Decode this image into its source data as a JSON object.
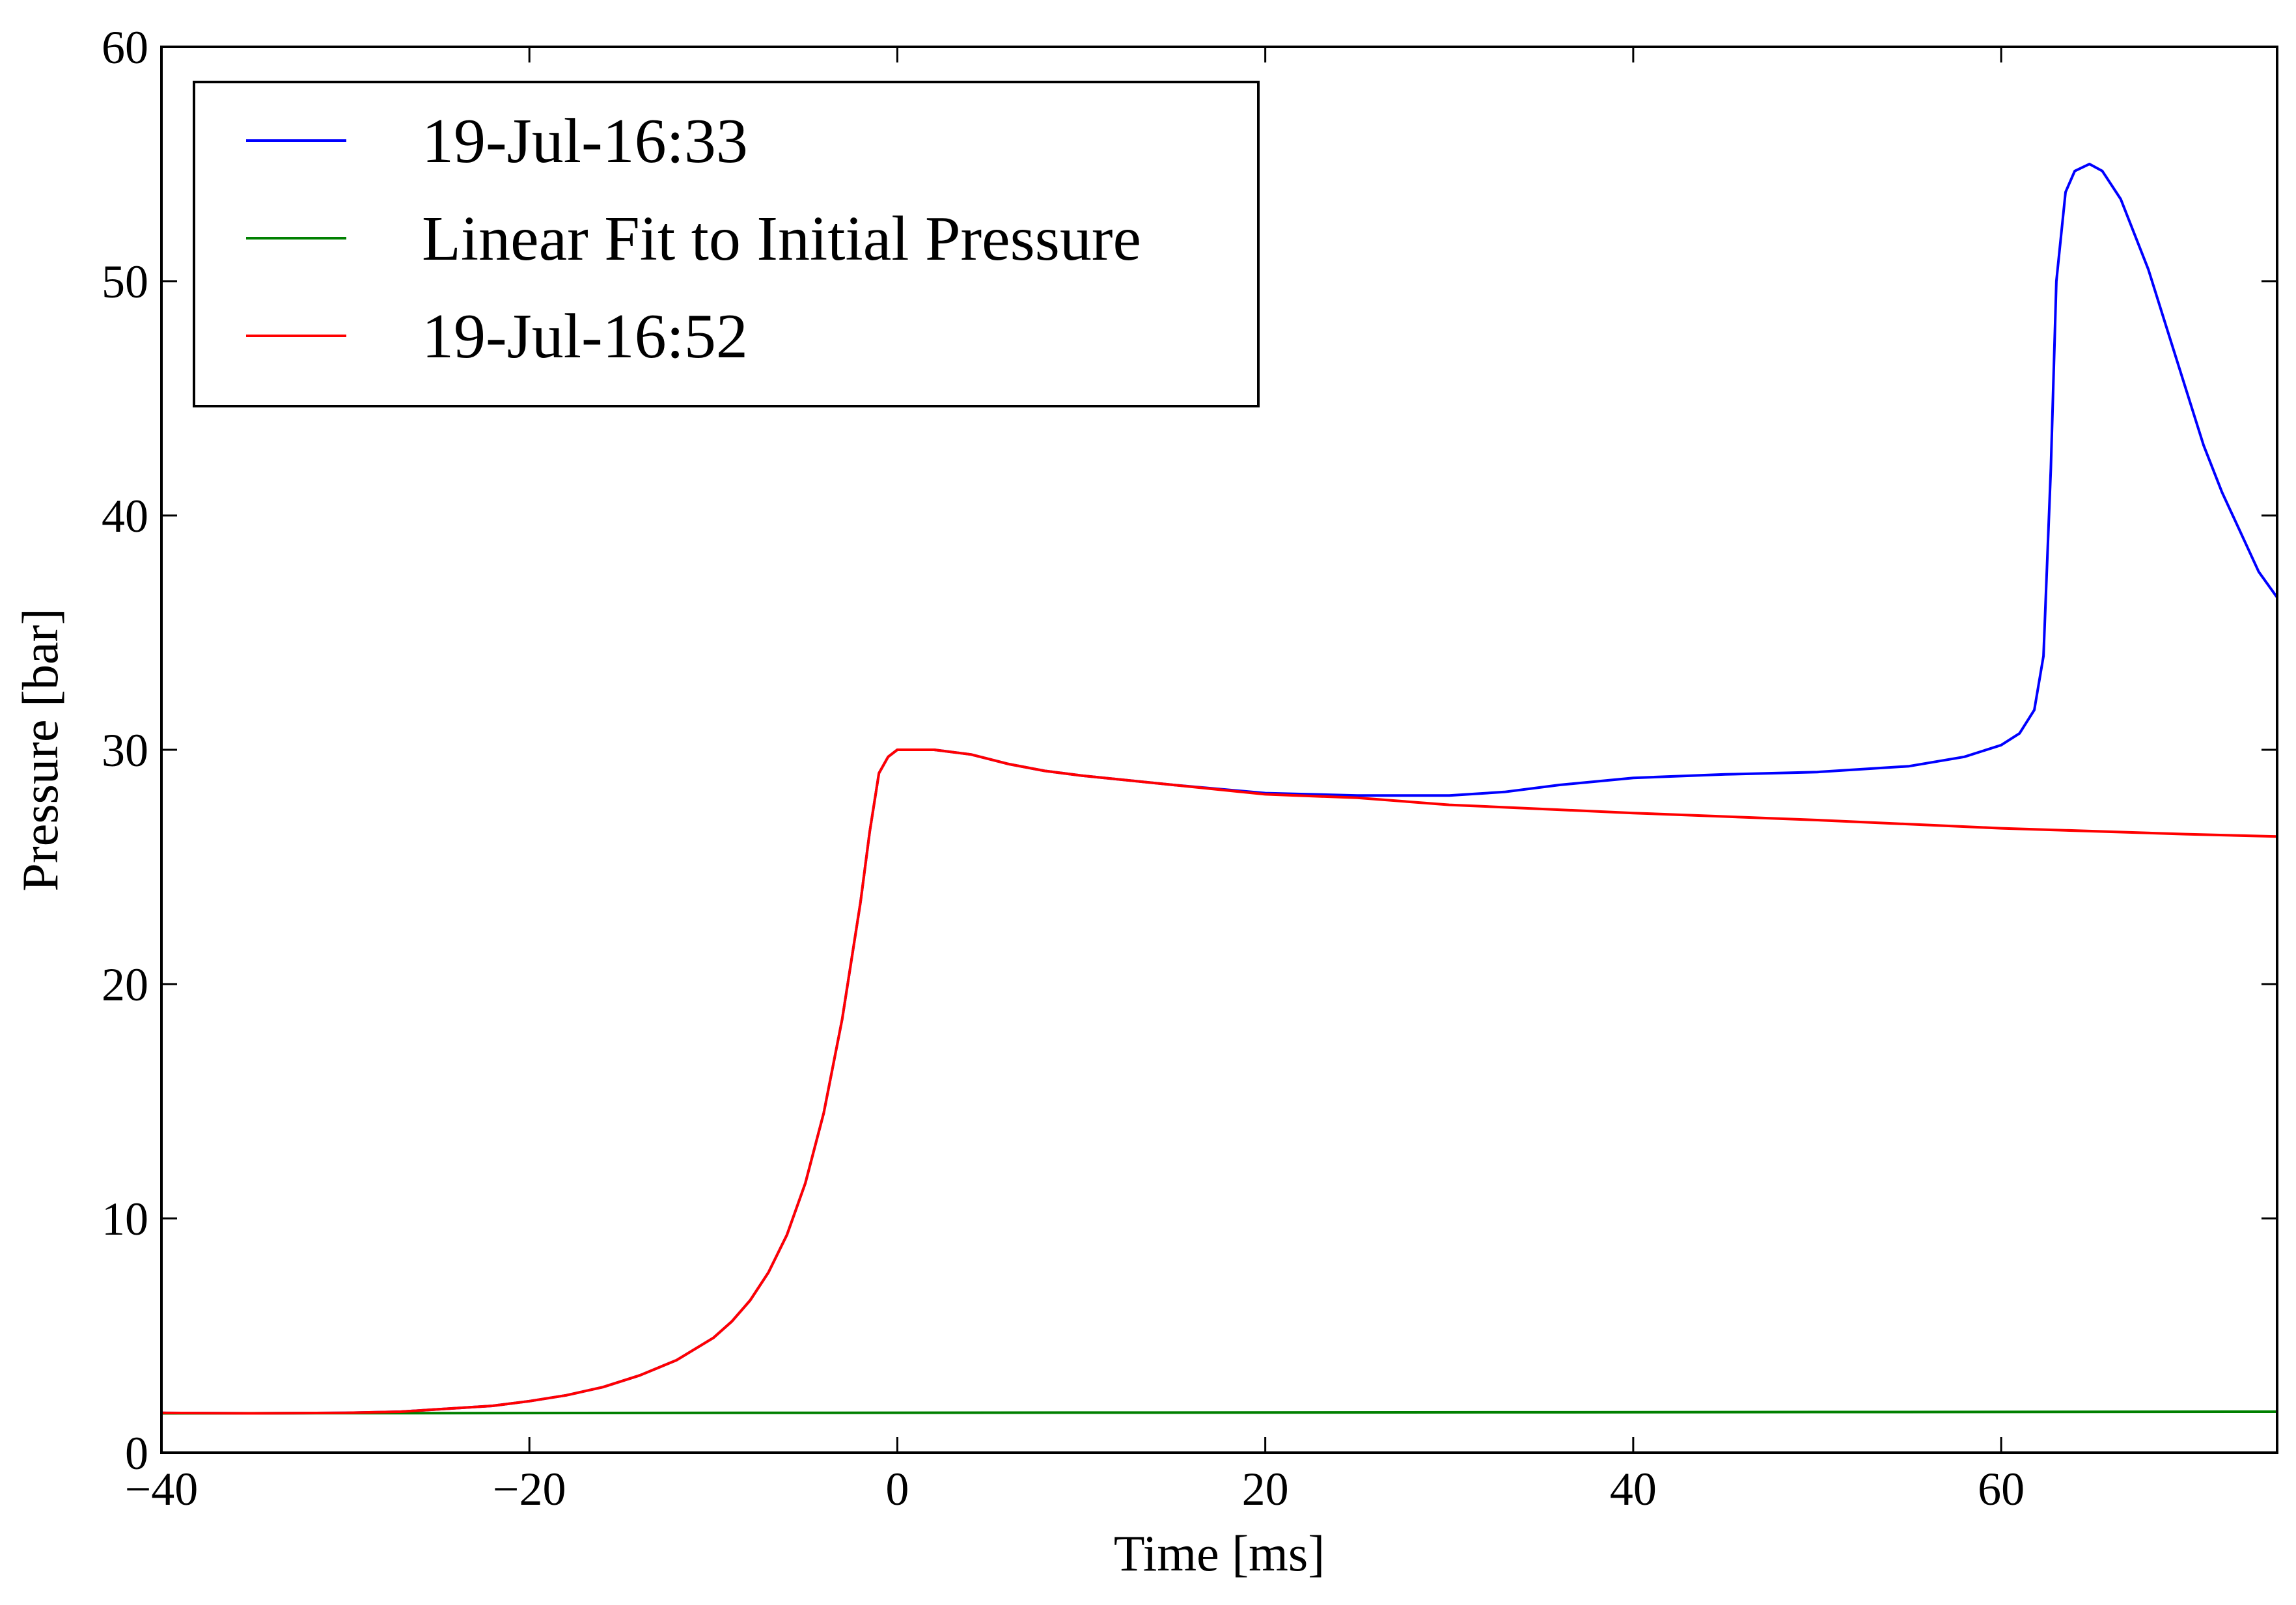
{
  "chart_data": {
    "type": "line",
    "xlabel": "Time [ms]",
    "ylabel": "Pressure [bar]",
    "xlim": [
      -40,
      75
    ],
    "ylim": [
      0,
      60
    ],
    "x_ticks": [
      -40,
      -20,
      0,
      20,
      40,
      60
    ],
    "x_tick_labels": [
      "−40",
      "−20",
      "0",
      "20",
      "40",
      "60"
    ],
    "y_ticks": [
      0,
      10,
      20,
      30,
      40,
      50,
      60
    ],
    "y_tick_labels": [
      "0",
      "10",
      "20",
      "30",
      "40",
      "50",
      "60"
    ],
    "grid": false,
    "legend_position": "top-left",
    "series": [
      {
        "name": "19-Jul-16:33",
        "color": "#0000ff",
        "points": [
          [
            -40,
            1.7
          ],
          [
            -35,
            1.68
          ],
          [
            -30,
            1.7
          ],
          [
            -27,
            1.75
          ],
          [
            -25,
            1.85
          ],
          [
            -22,
            2.0
          ],
          [
            -20,
            2.2
          ],
          [
            -18,
            2.45
          ],
          [
            -16,
            2.8
          ],
          [
            -14,
            3.3
          ],
          [
            -12,
            3.95
          ],
          [
            -10,
            4.9
          ],
          [
            -9,
            5.6
          ],
          [
            -8,
            6.5
          ],
          [
            -7,
            7.7
          ],
          [
            -6,
            9.3
          ],
          [
            -5,
            11.5
          ],
          [
            -4,
            14.5
          ],
          [
            -3,
            18.5
          ],
          [
            -2,
            23.5
          ],
          [
            -1.5,
            26.5
          ],
          [
            -1,
            29.0
          ],
          [
            -0.5,
            29.7
          ],
          [
            0,
            30.0
          ],
          [
            2,
            30.0
          ],
          [
            4,
            29.8
          ],
          [
            6,
            29.4
          ],
          [
            8,
            29.1
          ],
          [
            10,
            28.9
          ],
          [
            15,
            28.5
          ],
          [
            20,
            28.15
          ],
          [
            25,
            28.05
          ],
          [
            30,
            28.05
          ],
          [
            33,
            28.2
          ],
          [
            36,
            28.5
          ],
          [
            40,
            28.8
          ],
          [
            45,
            28.95
          ],
          [
            50,
            29.05
          ],
          [
            55,
            29.3
          ],
          [
            58,
            29.7
          ],
          [
            60,
            30.2
          ],
          [
            61,
            30.7
          ],
          [
            61.8,
            31.7
          ],
          [
            62.3,
            34.0
          ],
          [
            62.7,
            42.0
          ],
          [
            63.0,
            50.0
          ],
          [
            63.5,
            53.8
          ],
          [
            64.0,
            54.7
          ],
          [
            64.8,
            55.0
          ],
          [
            65.5,
            54.7
          ],
          [
            66.5,
            53.5
          ],
          [
            68,
            50.5
          ],
          [
            69,
            48.0
          ],
          [
            70,
            45.5
          ],
          [
            71,
            43.0
          ],
          [
            72,
            41.0
          ],
          [
            73,
            39.3
          ],
          [
            74,
            37.6
          ],
          [
            75,
            36.5
          ]
        ]
      },
      {
        "name": "Linear Fit to Initial Pressure",
        "color": "#008000",
        "points": [
          [
            -40,
            1.68
          ],
          [
            75,
            1.75
          ]
        ]
      },
      {
        "name": "19-Jul-16:52",
        "color": "#ff0000",
        "points": [
          [
            -40,
            1.7
          ],
          [
            -35,
            1.68
          ],
          [
            -30,
            1.7
          ],
          [
            -27,
            1.75
          ],
          [
            -25,
            1.85
          ],
          [
            -22,
            2.0
          ],
          [
            -20,
            2.2
          ],
          [
            -18,
            2.45
          ],
          [
            -16,
            2.8
          ],
          [
            -14,
            3.3
          ],
          [
            -12,
            3.95
          ],
          [
            -10,
            4.9
          ],
          [
            -9,
            5.6
          ],
          [
            -8,
            6.5
          ],
          [
            -7,
            7.7
          ],
          [
            -6,
            9.3
          ],
          [
            -5,
            11.5
          ],
          [
            -4,
            14.5
          ],
          [
            -3,
            18.5
          ],
          [
            -2,
            23.5
          ],
          [
            -1.5,
            26.5
          ],
          [
            -1,
            29.0
          ],
          [
            -0.5,
            29.7
          ],
          [
            0,
            30.0
          ],
          [
            2,
            30.0
          ],
          [
            4,
            29.8
          ],
          [
            6,
            29.4
          ],
          [
            8,
            29.1
          ],
          [
            10,
            28.9
          ],
          [
            15,
            28.5
          ],
          [
            20,
            28.1
          ],
          [
            25,
            27.95
          ],
          [
            30,
            27.65
          ],
          [
            40,
            27.3
          ],
          [
            50,
            27.0
          ],
          [
            60,
            26.65
          ],
          [
            70,
            26.4
          ],
          [
            75,
            26.3
          ]
        ]
      }
    ]
  }
}
